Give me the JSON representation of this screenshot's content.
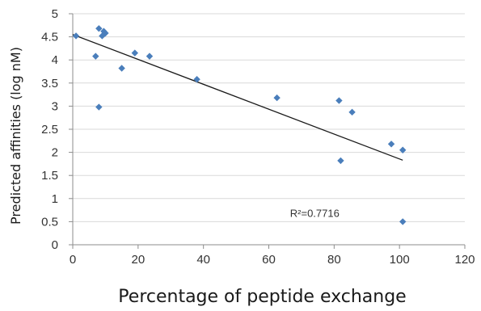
{
  "chart_data": {
    "type": "scatter",
    "xlabel": "Percentage of peptide exchange",
    "ylabel": "Predicted affinities (log nM)",
    "xlim": [
      0,
      120
    ],
    "ylim": [
      0,
      5
    ],
    "x_ticks": [
      0,
      20,
      40,
      60,
      80,
      100,
      120
    ],
    "y_ticks": [
      0,
      0.5,
      1,
      1.5,
      2,
      2.5,
      3,
      3.5,
      4,
      4.5,
      5
    ],
    "x_tick_labels": [
      "0",
      "20",
      "40",
      "60",
      "80",
      "100",
      "120"
    ],
    "y_tick_labels": [
      "0",
      "0.5",
      "1",
      "1.5",
      "2",
      "2.5",
      "3",
      "3.5",
      "4",
      "4.5",
      "5"
    ],
    "grid": "horizontal",
    "marker_color": "#4a7ebb",
    "trendline_color": "#1a1a1a",
    "series": [
      {
        "points": [
          {
            "x": 1,
            "y": 4.52
          },
          {
            "x": 7,
            "y": 4.08
          },
          {
            "x": 8,
            "y": 4.68
          },
          {
            "x": 8,
            "y": 2.98
          },
          {
            "x": 9,
            "y": 4.52
          },
          {
            "x": 9.5,
            "y": 4.62
          },
          {
            "x": 10,
            "y": 4.58
          },
          {
            "x": 15,
            "y": 3.82
          },
          {
            "x": 19,
            "y": 4.15
          },
          {
            "x": 23.5,
            "y": 4.08
          },
          {
            "x": 38,
            "y": 3.58
          },
          {
            "x": 62.5,
            "y": 3.18
          },
          {
            "x": 81.5,
            "y": 3.12
          },
          {
            "x": 82,
            "y": 1.82
          },
          {
            "x": 85.5,
            "y": 2.87
          },
          {
            "x": 97.5,
            "y": 2.18
          },
          {
            "x": 101,
            "y": 2.05
          },
          {
            "x": 101,
            "y": 0.5
          }
        ]
      }
    ],
    "trendline": {
      "x": [
        0,
        101
      ],
      "y": [
        4.55,
        1.83
      ]
    },
    "annotation": {
      "text": "R²=0.7716"
    }
  }
}
